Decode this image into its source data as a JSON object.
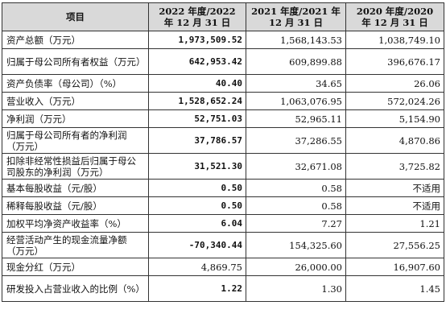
{
  "header": {
    "item": "项目",
    "col1": "2022 年度/2022 年 12 月 31 日",
    "col2": "2021 年度/2021 年 12 月 31 日",
    "col3": "2020 年度/2020 年 12 月 31 日"
  },
  "rows": [
    {
      "label": "资产总额（万元）",
      "v1": "1,973,509.52",
      "v2": "1,568,143.53",
      "v3": "1,038,749.10"
    },
    {
      "label": "归属于母公司所有者权益（万元）",
      "v1": "642,953.42",
      "v2": "609,899.88",
      "v3": "396,676.17"
    },
    {
      "label": "资产负债率（母公司）（%）",
      "v1": "40.40",
      "v2": "34.65",
      "v3": "26.06"
    },
    {
      "label": "营业收入（万元）",
      "v1": "1,528,652.24",
      "v2": "1,063,076.95",
      "v3": "572,024.26"
    },
    {
      "label": "净利润（万元）",
      "v1": "52,751.03",
      "v2": "52,965.11",
      "v3": "5,154.90"
    },
    {
      "label": "归属于母公司所有者的净利润（万元）",
      "v1": "37,786.57",
      "v2": "37,286.55",
      "v3": "4,870.86"
    },
    {
      "label": "扣除非经常性损益后归属于母公司股东的净利润（万元）",
      "v1": "31,521.30",
      "v2": "32,671.08",
      "v3": "3,725.82"
    },
    {
      "label": "基本每股收益（元/股）",
      "v1": "0.50",
      "v2": "0.58",
      "v3": "不适用"
    },
    {
      "label": "稀释每股收益（元/股）",
      "v1": "0.50",
      "v2": "0.58",
      "v3": "不适用"
    },
    {
      "label": "加权平均净资产收益率（%）",
      "v1": "6.04",
      "v2": "7.27",
      "v3": "1.21"
    },
    {
      "label": "经营活动产生的现金流量净额（万元）",
      "v1": "-70,340.44",
      "v2": "154,325.60",
      "v3": "27,556.25"
    },
    {
      "label": "现金分红（万元）",
      "v1": "4,869.75",
      "v2": "26,000.00",
      "v3": "16,907.60"
    },
    {
      "label": "研发投入占营业收入的比例（%）",
      "v1": "1.22",
      "v2": "1.30",
      "v3": "1.45"
    }
  ]
}
